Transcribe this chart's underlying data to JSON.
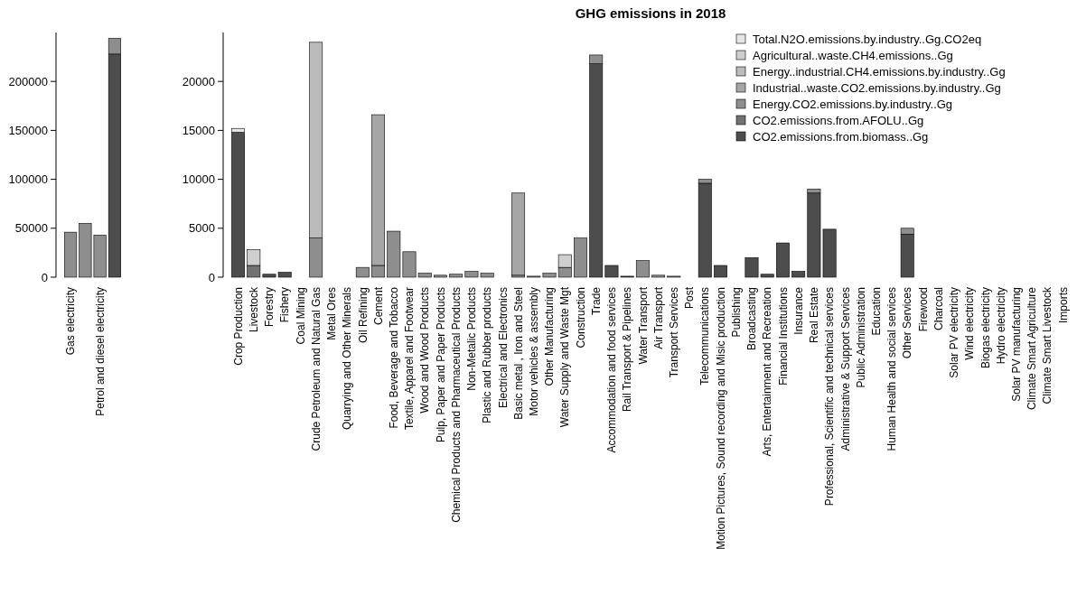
{
  "chart_data": [
    {
      "type": "bar",
      "stacked": true,
      "categories": [
        "Gas electricity",
        null,
        "Petrol and diesel electricity",
        null
      ],
      "ylim": [
        0,
        250000
      ],
      "yticks": [
        0,
        50000,
        100000,
        150000,
        200000
      ],
      "series": [
        {
          "color": "#4d4d4d",
          "values": [
            0,
            0,
            0,
            228000
          ]
        },
        {
          "color": "#8e8e8e",
          "values": [
            46000,
            55000,
            43000,
            16000
          ]
        }
      ]
    },
    {
      "type": "bar",
      "stacked": true,
      "title": "GHG emissions in 2018",
      "legend": "top right",
      "ylim": [
        0,
        25000
      ],
      "yticks": [
        0,
        5000,
        10000,
        15000,
        20000
      ],
      "categories": [
        "Crop Production",
        "Livestock",
        "Forestry",
        "Fishery",
        "Coal Mining",
        "Crude Petroleum and Natural Gas",
        "Metal Ores",
        "Quarrying and Other Minerals",
        "Oil Refining",
        "Cement",
        "Food, Beverage and Tobacco",
        "Textile, Apparel and Footwear",
        "Wood and Wood Products",
        "Pulp, Paper and Paper  Products",
        "Chemical Products and Pharmaceutical Products",
        "Non-Metalic Products",
        "Plastic and Rubber products",
        "Electrical and Electronics",
        "Basic metal , Iron and Steel",
        "Motor vehicles &  assembly",
        "Other Manufacturing",
        "Water Supply and Waste Mgt",
        "Construction",
        "Trade",
        "Accommodation and food services",
        "Rail Transport & Pipelines",
        "Water Transport",
        "Air Transport",
        "Transport Services",
        "Post",
        "Telecommunications",
        "Motion Pictures, Sound recording and Misic production",
        "Publishing",
        "Broadcasting",
        "Arts, Entertainment and Recreation",
        "Financial Institutions",
        "Insurance",
        "Real Estate",
        "Professional, Scientific and technical services",
        "Administrative & Support Services",
        "Public Administration",
        "Education",
        "Human Health and social services",
        "Other Services",
        "Firewood",
        "Charcoal",
        "Solar PV electricity",
        "Wind electricity",
        "Biogas electricity",
        "Hydro electricity",
        "Solar PV manufacturing",
        "Climate Smart Agriculture",
        "Climate Smart Livestock",
        "Imports"
      ],
      "series": [
        {
          "name": "CO2.emissions.from.biomass..Gg",
          "color": "#4d4d4d",
          "values": [
            14800,
            0,
            300,
            500,
            0,
            0,
            0,
            0,
            0,
            0,
            0,
            0,
            0,
            0,
            0,
            0,
            0,
            0,
            0,
            0,
            0,
            0,
            0,
            21800,
            1200,
            100,
            0,
            0,
            0,
            0,
            9600,
            1200,
            0,
            2000,
            300,
            3500,
            600,
            8600,
            4900,
            0,
            0,
            0,
            0,
            4400,
            0,
            0,
            0,
            0,
            0,
            0,
            0,
            0,
            0,
            0
          ]
        },
        {
          "name": "CO2.emissions.from.AFOLU..Gg",
          "color": "#727272",
          "values": [
            0,
            1200,
            0,
            0,
            0,
            0,
            0,
            0,
            0,
            0,
            0,
            0,
            0,
            0,
            0,
            0,
            0,
            0,
            0,
            0,
            0,
            0,
            0,
            0,
            0,
            0,
            0,
            0,
            0,
            0,
            0,
            0,
            0,
            0,
            0,
            0,
            0,
            0,
            0,
            0,
            0,
            0,
            0,
            0,
            0,
            0,
            0,
            0,
            0,
            0,
            0,
            0,
            0,
            0
          ]
        },
        {
          "name": "Energy.CO2.emissions.by.industry..Gg",
          "color": "#8e8e8e",
          "values": [
            0,
            0,
            0,
            0,
            0,
            4000,
            0,
            0,
            1000,
            1200,
            4700,
            2600,
            400,
            200,
            300,
            600,
            400,
            0,
            200,
            100,
            400,
            1000,
            4000,
            900,
            0,
            0,
            1700,
            200,
            100,
            0,
            400,
            0,
            0,
            0,
            0,
            0,
            0,
            400,
            0,
            0,
            0,
            0,
            0,
            600,
            0,
            0,
            0,
            0,
            0,
            0,
            0,
            0,
            0,
            0
          ]
        },
        {
          "name": "Industrial..waste.CO2.emissions.by.industry..Gg",
          "color": "#a6a6a6",
          "values": [
            0,
            0,
            0,
            0,
            0,
            0,
            0,
            0,
            0,
            15400,
            0,
            0,
            0,
            0,
            0,
            0,
            0,
            0,
            8400,
            0,
            0,
            0,
            0,
            0,
            0,
            0,
            0,
            0,
            0,
            0,
            0,
            0,
            0,
            0,
            0,
            0,
            0,
            0,
            0,
            0,
            0,
            0,
            0,
            0,
            0,
            0,
            0,
            0,
            0,
            0,
            0,
            0,
            0,
            0
          ]
        },
        {
          "name": "Energy..industrial.CH4.emissions.by.industry..Gg",
          "color": "#bbbbbb",
          "values": [
            0,
            0,
            0,
            0,
            0,
            20000,
            0,
            0,
            0,
            0,
            0,
            0,
            0,
            0,
            0,
            0,
            0,
            0,
            0,
            0,
            0,
            0,
            0,
            0,
            0,
            0,
            0,
            0,
            0,
            0,
            0,
            0,
            0,
            0,
            0,
            0,
            0,
            0,
            0,
            0,
            0,
            0,
            0,
            0,
            0,
            0,
            0,
            0,
            0,
            0,
            0,
            0,
            0,
            0
          ]
        },
        {
          "name": "Agricultural..waste.CH4.emissions..Gg",
          "color": "#cecece",
          "values": [
            0,
            1600,
            0,
            0,
            0,
            0,
            0,
            0,
            0,
            0,
            0,
            0,
            0,
            0,
            0,
            0,
            0,
            0,
            0,
            0,
            0,
            1300,
            0,
            0,
            0,
            0,
            0,
            0,
            0,
            0,
            0,
            0,
            0,
            0,
            0,
            0,
            0,
            0,
            0,
            0,
            0,
            0,
            0,
            0,
            0,
            0,
            0,
            0,
            0,
            0,
            0,
            0,
            0,
            0
          ]
        },
        {
          "name": "Total.N2O.emissions.by.industry..Gg.CO2eq",
          "color": "#e6e6e6",
          "values": [
            400,
            0,
            0,
            0,
            0,
            0,
            0,
            0,
            0,
            0,
            0,
            0,
            0,
            0,
            0,
            0,
            0,
            0,
            0,
            0,
            0,
            0,
            0,
            0,
            0,
            0,
            0,
            0,
            0,
            0,
            0,
            0,
            0,
            0,
            0,
            0,
            0,
            0,
            0,
            0,
            0,
            0,
            0,
            0,
            0,
            0,
            0,
            0,
            0,
            0,
            0,
            0,
            0,
            0
          ]
        }
      ]
    }
  ]
}
